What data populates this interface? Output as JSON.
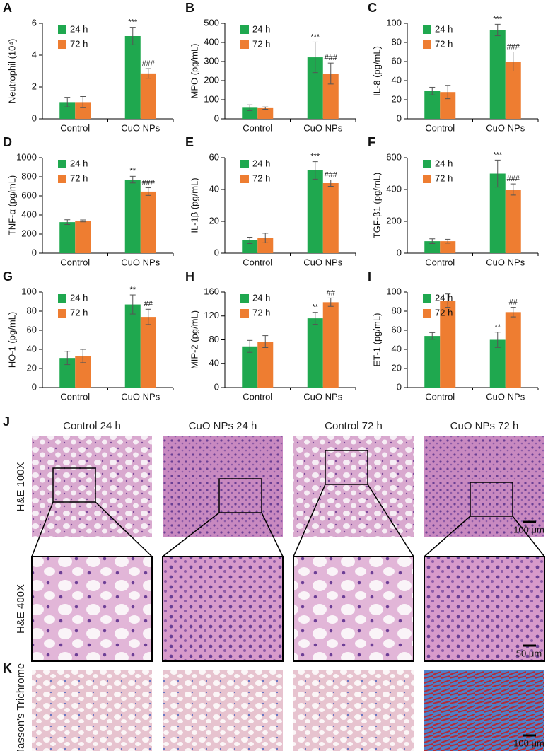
{
  "chart_data": [
    {
      "type": "bar",
      "panel": "A",
      "ylabel": "Neutrophil (10⁴)",
      "categories": [
        "Control",
        "CuO NPs"
      ],
      "ylim": [
        0,
        6
      ],
      "yticks": [
        0,
        2,
        4,
        6
      ],
      "series": [
        {
          "name": "24 h",
          "color": "#1fa84f",
          "values": [
            1.05,
            5.2
          ],
          "errors": [
            0.3,
            0.55
          ],
          "annotations": [
            null,
            "***"
          ]
        },
        {
          "name": "72 h",
          "color": "#ee7d31",
          "values": [
            1.05,
            2.85
          ],
          "errors": [
            0.35,
            0.3
          ],
          "annotations": [
            null,
            "###"
          ]
        }
      ]
    },
    {
      "type": "bar",
      "panel": "B",
      "ylabel": "MPO (pg/mL)",
      "categories": [
        "Control",
        "CuO NPs"
      ],
      "ylim": [
        0,
        500
      ],
      "yticks": [
        0,
        100,
        200,
        300,
        400,
        500
      ],
      "series": [
        {
          "name": "24 h",
          "color": "#1fa84f",
          "values": [
            58,
            322
          ],
          "errors": [
            15,
            80
          ],
          "annotations": [
            null,
            "***"
          ]
        },
        {
          "name": "72 h",
          "color": "#ee7d31",
          "values": [
            56,
            237
          ],
          "errors": [
            6,
            55
          ],
          "annotations": [
            null,
            "###"
          ]
        }
      ]
    },
    {
      "type": "bar",
      "panel": "C",
      "ylabel": "IL-8 (pg/mL)",
      "categories": [
        "Control",
        "CuO NPs"
      ],
      "ylim": [
        0,
        100
      ],
      "yticks": [
        0,
        20,
        40,
        60,
        80,
        100
      ],
      "series": [
        {
          "name": "24 h",
          "color": "#1fa84f",
          "values": [
            29,
            93
          ],
          "errors": [
            4,
            6
          ],
          "annotations": [
            null,
            "***"
          ]
        },
        {
          "name": "72 h",
          "color": "#ee7d31",
          "values": [
            28,
            60
          ],
          "errors": [
            7,
            10
          ],
          "annotations": [
            null,
            "###"
          ]
        }
      ]
    },
    {
      "type": "bar",
      "panel": "D",
      "ylabel": "TNF-α (pg/mL)",
      "categories": [
        "Control",
        "CuO NPs"
      ],
      "ylim": [
        0,
        1000
      ],
      "yticks": [
        0,
        200,
        400,
        600,
        800,
        1000
      ],
      "series": [
        {
          "name": "24 h",
          "color": "#1fa84f",
          "values": [
            325,
            770
          ],
          "errors": [
            25,
            35
          ],
          "annotations": [
            null,
            "**"
          ]
        },
        {
          "name": "72 h",
          "color": "#ee7d31",
          "values": [
            338,
            645
          ],
          "errors": [
            10,
            40
          ],
          "annotations": [
            null,
            "###"
          ]
        }
      ]
    },
    {
      "type": "bar",
      "panel": "E",
      "ylabel": "IL-1β (pg/mL)",
      "categories": [
        "Control",
        "CuO NPs"
      ],
      "ylim": [
        0,
        60
      ],
      "yticks": [
        0,
        20,
        40,
        60
      ],
      "series": [
        {
          "name": "24 h",
          "color": "#1fa84f",
          "values": [
            8,
            52
          ],
          "errors": [
            2,
            5.5
          ],
          "annotations": [
            null,
            "***"
          ]
        },
        {
          "name": "72 h",
          "color": "#ee7d31",
          "values": [
            9.5,
            44
          ],
          "errors": [
            3,
            2
          ],
          "annotations": [
            null,
            "###"
          ]
        }
      ]
    },
    {
      "type": "bar",
      "panel": "F",
      "ylabel": "TGF-β1 (pg/mL)",
      "categories": [
        "Control",
        "CuO NPs"
      ],
      "ylim": [
        0,
        600
      ],
      "yticks": [
        0,
        200,
        400,
        600
      ],
      "series": [
        {
          "name": "24 h",
          "color": "#1fa84f",
          "values": [
            75,
            500
          ],
          "errors": [
            15,
            85
          ],
          "annotations": [
            null,
            "***"
          ]
        },
        {
          "name": "72 h",
          "color": "#ee7d31",
          "values": [
            75,
            400
          ],
          "errors": [
            12,
            35
          ],
          "annotations": [
            null,
            "###"
          ]
        }
      ]
    },
    {
      "type": "bar",
      "panel": "G",
      "ylabel": "HO-1 (pg/mL)",
      "categories": [
        "Control",
        "CuO NPs"
      ],
      "ylim": [
        0,
        100
      ],
      "yticks": [
        0,
        20,
        40,
        60,
        80,
        100
      ],
      "series": [
        {
          "name": "24 h",
          "color": "#1fa84f",
          "values": [
            31,
            87
          ],
          "errors": [
            7,
            10
          ],
          "annotations": [
            null,
            "**"
          ]
        },
        {
          "name": "72 h",
          "color": "#ee7d31",
          "values": [
            33,
            74
          ],
          "errors": [
            7,
            8
          ],
          "annotations": [
            null,
            "##"
          ]
        }
      ]
    },
    {
      "type": "bar",
      "panel": "H",
      "ylabel": "MIP-2 (pg/mL)",
      "categories": [
        "Control",
        "CuO NPs"
      ],
      "ylim": [
        0,
        160
      ],
      "yticks": [
        0,
        40,
        80,
        120,
        160
      ],
      "series": [
        {
          "name": "24 h",
          "color": "#1fa84f",
          "values": [
            69,
            116
          ],
          "errors": [
            10,
            10
          ],
          "annotations": [
            null,
            "**"
          ]
        },
        {
          "name": "72 h",
          "color": "#ee7d31",
          "values": [
            77,
            143
          ],
          "errors": [
            10,
            7
          ],
          "annotations": [
            null,
            "##"
          ]
        }
      ]
    },
    {
      "type": "bar",
      "panel": "I",
      "ylabel": "ET-1 (pg/mL)",
      "categories": [
        "Control",
        "CuO NPs"
      ],
      "ylim": [
        0,
        100
      ],
      "yticks": [
        0,
        20,
        40,
        60,
        80,
        100
      ],
      "series": [
        {
          "name": "24 h",
          "color": "#1fa84f",
          "values": [
            54,
            50
          ],
          "errors": [
            3.5,
            8
          ],
          "annotations": [
            null,
            "**"
          ]
        },
        {
          "name": "72 h",
          "color": "#ee7d31",
          "values": [
            91,
            79
          ],
          "errors": [
            7,
            5
          ],
          "annotations": [
            null,
            "##"
          ]
        }
      ]
    }
  ],
  "histology": {
    "panel_j": "J",
    "panel_k": "K",
    "columns": [
      "Control  24 h",
      "CuO NPs  24 h",
      "Control  72 h",
      "CuO NPs  72 h"
    ],
    "rows": [
      "H&E 100X",
      "H&E 400X",
      "Masson's Trichrome"
    ],
    "scale_bars": [
      "100 μm",
      "50 μm",
      "100 μm"
    ]
  }
}
